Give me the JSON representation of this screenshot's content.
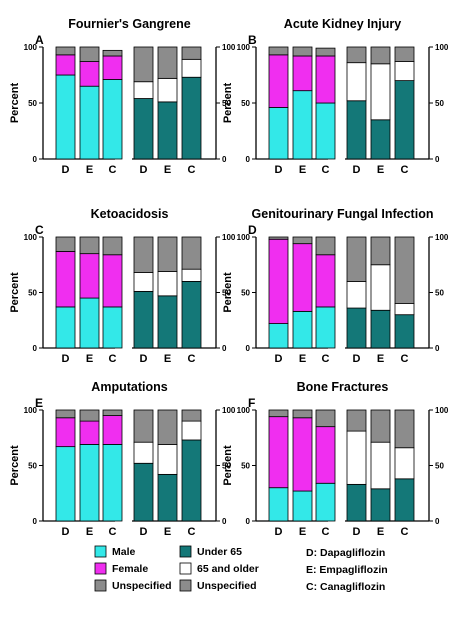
{
  "colors": {
    "male": "#33e8e8",
    "female": "#f02ef0",
    "unspecified": "#8c8c8c",
    "under65": "#147878",
    "over65": "#ffffff",
    "stroke": "#000000"
  },
  "legend": {
    "sex": [
      {
        "label": "Male",
        "color_key": "male"
      },
      {
        "label": "Female",
        "color_key": "female"
      },
      {
        "label": "Unspecified",
        "color_key": "unspecified"
      }
    ],
    "age": [
      {
        "label": "Under 65",
        "color_key": "under65"
      },
      {
        "label": "65 and older",
        "color_key": "over65"
      },
      {
        "label": "Unspecified",
        "color_key": "unspecified"
      }
    ],
    "abbreviations": [
      "D: Dapagliflozin",
      "E: Empagliflozin",
      "C: Canagliflozin"
    ]
  },
  "chart_data": [
    {
      "type": "bar",
      "stacked": true,
      "letter": "A",
      "title": "Fournier's Gangrene",
      "ylabel": "Percent",
      "ylim": [
        0,
        100
      ],
      "yticks": [
        "0",
        "50",
        "100"
      ],
      "right_axis_ticks": [
        "0",
        "50",
        "100"
      ],
      "categories": [
        "D",
        "E",
        "C",
        "D",
        "E",
        "C"
      ],
      "sex_bars": [
        {
          "male": 75,
          "female": 18,
          "unspecified": 7
        },
        {
          "male": 65,
          "female": 22,
          "unspecified": 13
        },
        {
          "male": 71,
          "female": 21,
          "unspecified": 5
        }
      ],
      "age_bars": [
        {
          "under65": 54,
          "over65": 15,
          "unspecified": 31
        },
        {
          "under65": 51,
          "over65": 21,
          "unspecified": 28
        },
        {
          "under65": 73,
          "over65": 16,
          "unspecified": 11
        }
      ]
    },
    {
      "type": "bar",
      "stacked": true,
      "letter": "B",
      "title": "Acute Kidney Injury",
      "ylabel": "Percent",
      "ylim": [
        0,
        100
      ],
      "yticks": [
        "0",
        "50",
        "100"
      ],
      "right_axis_ticks": [
        "0",
        "50",
        "100"
      ],
      "categories": [
        "D",
        "E",
        "C",
        "D",
        "E",
        "C"
      ],
      "sex_bars": [
        {
          "male": 46,
          "female": 47,
          "unspecified": 7
        },
        {
          "male": 61,
          "female": 31,
          "unspecified": 8
        },
        {
          "male": 50,
          "female": 42,
          "unspecified": 7
        }
      ],
      "age_bars": [
        {
          "under65": 52,
          "over65": 34,
          "unspecified": 14
        },
        {
          "under65": 35,
          "over65": 50,
          "unspecified": 15
        },
        {
          "under65": 70,
          "over65": 17,
          "unspecified": 13
        }
      ]
    },
    {
      "type": "bar",
      "stacked": true,
      "letter": "C",
      "title": "Ketoacidosis",
      "ylabel": "Percent",
      "ylim": [
        0,
        100
      ],
      "yticks": [
        "0",
        "50",
        "100"
      ],
      "right_axis_ticks": [
        "0",
        "50",
        "100"
      ],
      "categories": [
        "D",
        "E",
        "C",
        "D",
        "E",
        "C"
      ],
      "sex_bars": [
        {
          "male": 37,
          "female": 50,
          "unspecified": 13
        },
        {
          "male": 45,
          "female": 40,
          "unspecified": 15
        },
        {
          "male": 37,
          "female": 47,
          "unspecified": 16
        }
      ],
      "age_bars": [
        {
          "under65": 51,
          "over65": 17,
          "unspecified": 32
        },
        {
          "under65": 47,
          "over65": 22,
          "unspecified": 31
        },
        {
          "under65": 60,
          "over65": 11,
          "unspecified": 29
        }
      ]
    },
    {
      "type": "bar",
      "stacked": true,
      "letter": "D",
      "title": "Genitourinary Fungal Infection",
      "ylabel": "Percent",
      "ylim": [
        0,
        100
      ],
      "yticks": [
        "0",
        "50",
        "100"
      ],
      "right_axis_ticks": [
        "0",
        "50",
        "100"
      ],
      "categories": [
        "D",
        "E",
        "C",
        "D",
        "E",
        "C"
      ],
      "sex_bars": [
        {
          "male": 22,
          "female": 76,
          "unspecified": 2
        },
        {
          "male": 33,
          "female": 61,
          "unspecified": 6
        },
        {
          "male": 37,
          "female": 47,
          "unspecified": 16
        }
      ],
      "age_bars": [
        {
          "under65": 36,
          "over65": 24,
          "unspecified": 40
        },
        {
          "under65": 34,
          "over65": 41,
          "unspecified": 25
        },
        {
          "under65": 30,
          "over65": 10,
          "unspecified": 60
        }
      ]
    },
    {
      "type": "bar",
      "stacked": true,
      "letter": "E",
      "title": "Amputations",
      "ylabel": "Percent",
      "ylim": [
        0,
        100
      ],
      "yticks": [
        "0",
        "50",
        "100"
      ],
      "right_axis_ticks": [
        "0",
        "50",
        "100"
      ],
      "categories": [
        "D",
        "E",
        "C",
        "D",
        "E",
        "C"
      ],
      "sex_bars": [
        {
          "male": 67,
          "female": 26,
          "unspecified": 7
        },
        {
          "male": 69,
          "female": 21,
          "unspecified": 10
        },
        {
          "male": 69,
          "female": 26,
          "unspecified": 5
        }
      ],
      "age_bars": [
        {
          "under65": 52,
          "over65": 19,
          "unspecified": 29
        },
        {
          "under65": 42,
          "over65": 27,
          "unspecified": 31
        },
        {
          "under65": 73,
          "over65": 17,
          "unspecified": 10
        }
      ]
    },
    {
      "type": "bar",
      "stacked": true,
      "letter": "F",
      "title": "Bone Fractures",
      "ylabel": "Percent",
      "ylim": [
        0,
        100
      ],
      "yticks": [
        "0",
        "50",
        "100"
      ],
      "right_axis_ticks": [
        "0",
        "50",
        "100"
      ],
      "categories": [
        "D",
        "E",
        "C",
        "D",
        "E",
        "C"
      ],
      "sex_bars": [
        {
          "male": 30,
          "female": 64,
          "unspecified": 6
        },
        {
          "male": 27,
          "female": 66,
          "unspecified": 7
        },
        {
          "male": 34,
          "female": 51,
          "unspecified": 15
        }
      ],
      "age_bars": [
        {
          "under65": 33,
          "over65": 48,
          "unspecified": 19
        },
        {
          "under65": 29,
          "over65": 42,
          "unspecified": 29
        },
        {
          "under65": 38,
          "over65": 28,
          "unspecified": 34
        }
      ]
    }
  ]
}
